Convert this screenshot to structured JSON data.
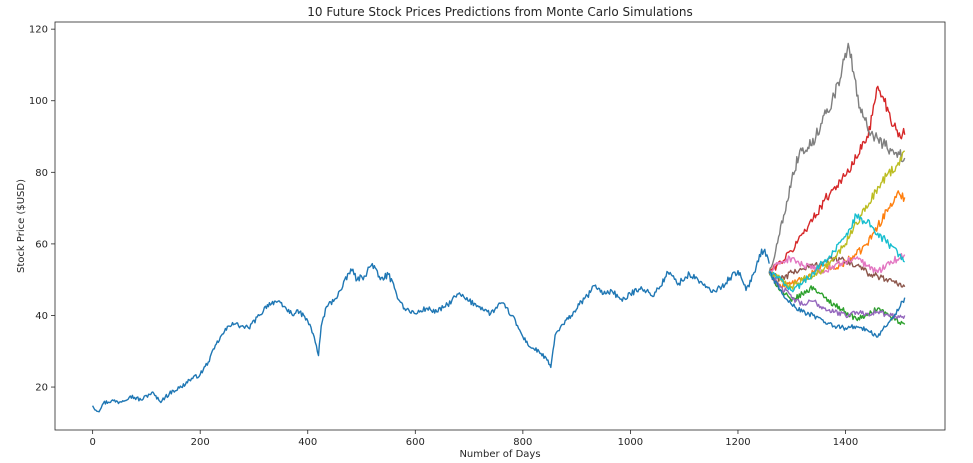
{
  "chart_data": {
    "type": "line",
    "title": "10 Future Stock Prices Predictions from Monte Carlo Simulations",
    "xlabel": "Number of Days",
    "ylabel": "Stock Price ($USD)",
    "xlim": [
      -70,
      1585
    ],
    "ylim": [
      8,
      122
    ],
    "xticks": [
      0,
      200,
      400,
      600,
      800,
      1000,
      1200,
      1400
    ],
    "yticks": [
      20,
      40,
      60,
      80,
      100,
      120
    ],
    "grid": false,
    "legend": false,
    "series": [
      {
        "role": "historical",
        "color": "#1f77b4",
        "x": [
          0,
          10,
          20,
          35,
          50,
          70,
          90,
          110,
          125,
          135,
          150,
          165,
          180,
          200,
          215,
          230,
          245,
          260,
          275,
          290,
          310,
          325,
          340,
          355,
          370,
          385,
          400,
          412,
          420,
          425,
          435,
          450,
          465,
          480,
          492,
          505,
          520,
          535,
          550,
          565,
          580,
          600,
          620,
          640,
          660,
          680,
          700,
          720,
          740,
          760,
          780,
          800,
          815,
          830,
          845,
          852,
          860,
          875,
          890,
          905,
          920,
          935,
          950,
          965,
          985,
          1000,
          1020,
          1040,
          1055,
          1070,
          1090,
          1110,
          1130,
          1150,
          1170,
          1185,
          1200,
          1215,
          1230,
          1240,
          1250,
          1258
        ],
        "y": [
          14.8,
          13.2,
          15.5,
          16.2,
          15.8,
          17.5,
          16.4,
          18.5,
          16.0,
          17.2,
          19.0,
          20.0,
          22.0,
          23.5,
          27.0,
          32.0,
          35.5,
          38.0,
          37.0,
          36.5,
          40.0,
          43.0,
          44.0,
          42.5,
          40.5,
          41.0,
          38.5,
          34.0,
          28.8,
          37.0,
          42.5,
          44.5,
          48.0,
          53.0,
          50.0,
          51.0,
          54.5,
          50.0,
          51.5,
          46.0,
          42.0,
          40.5,
          42.0,
          41.0,
          43.0,
          46.0,
          44.0,
          42.5,
          40.5,
          43.5,
          40.0,
          34.0,
          31.0,
          30.0,
          27.5,
          25.5,
          34.5,
          37.5,
          40.0,
          43.0,
          45.5,
          48.5,
          46.0,
          47.0,
          44.0,
          46.0,
          48.0,
          45.5,
          48.0,
          52.0,
          49.0,
          51.5,
          49.5,
          46.5,
          48.0,
          50.5,
          52.5,
          47.0,
          52.0,
          57.0,
          58.5,
          54.5
        ]
      },
      {
        "color": "#ff7f0e",
        "x": [
          1258,
          1280,
          1300,
          1320,
          1340,
          1360,
          1380,
          1400,
          1420,
          1440,
          1460,
          1480,
          1500,
          1510
        ],
        "y": [
          52,
          48,
          49,
          50,
          52,
          54,
          53,
          55,
          57,
          60,
          65,
          70,
          74,
          73
        ]
      },
      {
        "color": "#2ca02c",
        "x": [
          1258,
          1280,
          1300,
          1320,
          1340,
          1360,
          1380,
          1400,
          1420,
          1440,
          1460,
          1480,
          1500,
          1510
        ],
        "y": [
          52,
          47,
          44,
          46,
          48,
          45,
          43,
          41,
          39,
          40,
          42,
          40,
          38,
          37.5
        ]
      },
      {
        "color": "#d62728",
        "x": [
          1258,
          1280,
          1300,
          1320,
          1340,
          1360,
          1380,
          1400,
          1420,
          1440,
          1450,
          1460,
          1470,
          1480,
          1490,
          1500,
          1510
        ],
        "y": [
          52,
          55,
          58,
          63,
          67,
          72,
          76,
          79,
          84,
          90,
          96,
          104,
          101,
          97,
          93,
          91,
          90.5
        ]
      },
      {
        "color": "#9467bd",
        "x": [
          1258,
          1280,
          1300,
          1320,
          1340,
          1360,
          1380,
          1400,
          1420,
          1440,
          1460,
          1480,
          1500,
          1510
        ],
        "y": [
          52,
          48,
          45,
          43,
          44,
          42,
          41,
          40,
          41,
          40.5,
          41,
          40,
          39.5,
          40
        ]
      },
      {
        "color": "#8c564b",
        "x": [
          1258,
          1280,
          1300,
          1320,
          1340,
          1360,
          1380,
          1400,
          1420,
          1440,
          1460,
          1480,
          1500,
          1510
        ],
        "y": [
          52,
          50,
          52,
          53,
          54,
          55,
          56,
          55,
          54,
          52,
          51,
          50,
          49,
          48
        ]
      },
      {
        "color": "#e377c2",
        "x": [
          1258,
          1280,
          1300,
          1320,
          1340,
          1360,
          1380,
          1400,
          1420,
          1440,
          1460,
          1480,
          1500,
          1510
        ],
        "y": [
          52,
          55,
          56,
          54,
          53,
          52,
          54,
          55,
          56,
          54,
          52,
          55,
          56,
          57
        ]
      },
      {
        "color": "#7f7f7f",
        "x": [
          1258,
          1270,
          1285,
          1300,
          1315,
          1330,
          1345,
          1360,
          1375,
          1390,
          1405,
          1415,
          1425,
          1440,
          1455,
          1470,
          1485,
          1500,
          1510
        ],
        "y": [
          52,
          58,
          68,
          78,
          86,
          87,
          90,
          96,
          100,
          106,
          116,
          108,
          98,
          93,
          90,
          88,
          86,
          85,
          84
        ]
      },
      {
        "color": "#bcbd22",
        "x": [
          1258,
          1280,
          1300,
          1320,
          1340,
          1360,
          1380,
          1400,
          1420,
          1440,
          1460,
          1480,
          1500,
          1510
        ],
        "y": [
          52,
          50,
          48,
          50,
          51,
          53,
          56,
          60,
          66,
          70,
          76,
          80,
          82,
          86
        ]
      },
      {
        "color": "#17becf",
        "x": [
          1258,
          1280,
          1300,
          1320,
          1340,
          1360,
          1380,
          1400,
          1420,
          1440,
          1460,
          1480,
          1500,
          1510
        ],
        "y": [
          52,
          50,
          47,
          49,
          52,
          55,
          58,
          62,
          68,
          66,
          63,
          60,
          57,
          55
        ]
      },
      {
        "color": "#1f77b4",
        "x": [
          1258,
          1280,
          1300,
          1320,
          1340,
          1360,
          1380,
          1400,
          1420,
          1440,
          1460,
          1480,
          1500,
          1510
        ],
        "y": [
          52,
          47,
          43,
          41,
          40,
          38,
          37,
          36.5,
          37,
          36,
          34,
          38,
          42,
          45
        ]
      }
    ]
  }
}
